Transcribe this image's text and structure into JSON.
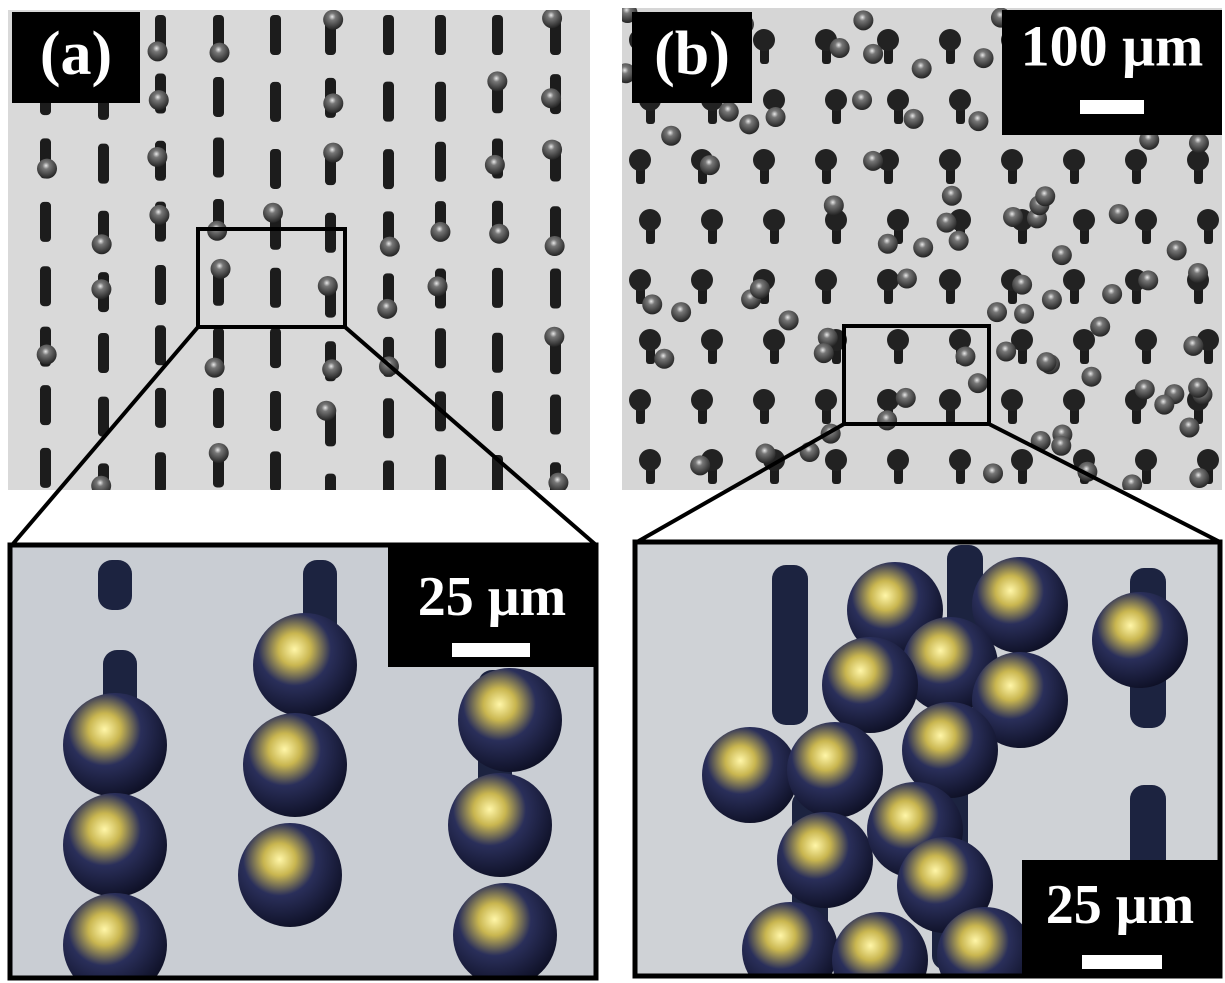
{
  "panels": [
    {
      "label": "(a)",
      "zoom_scale_bar": "25 μm"
    },
    {
      "label": "(b)",
      "overview_scale_bar": "100 μm",
      "zoom_scale_bar": "25 μm"
    }
  ]
}
